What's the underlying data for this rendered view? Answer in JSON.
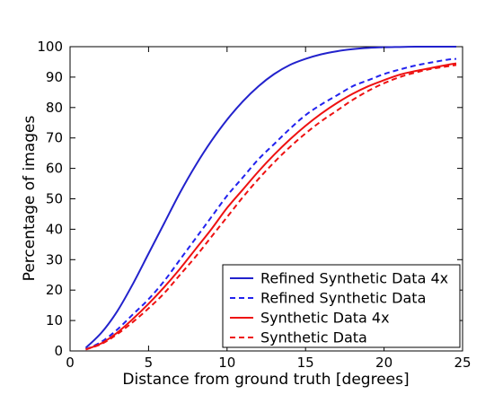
{
  "chart_data": {
    "type": "line",
    "title": "",
    "xlabel": "Distance from ground truth [degrees]",
    "ylabel": "Percentage of images",
    "xlim": [
      0,
      25
    ],
    "ylim": [
      0,
      100
    ],
    "x_ticks": [
      0,
      5,
      10,
      15,
      20,
      25
    ],
    "y_ticks": [
      0,
      10,
      20,
      30,
      40,
      50,
      60,
      70,
      80,
      90,
      100
    ],
    "grid": false,
    "legend_position": "lower-right",
    "x": [
      1,
      2,
      3,
      4,
      5,
      6,
      7,
      8,
      9,
      10,
      11,
      12,
      13,
      14,
      15,
      16,
      17,
      18,
      19,
      20,
      21,
      22,
      23,
      24,
      24.6
    ],
    "series": [
      {
        "name": "Refined Synthetic Data 4x",
        "color": "#2222cc",
        "dash": "solid",
        "values": [
          1,
          6,
          13,
          22,
          32,
          42,
          52,
          61,
          69,
          76,
          82,
          87,
          91,
          94,
          96,
          97.5,
          98.5,
          99.2,
          99.6,
          99.8,
          99.9,
          100,
          100,
          100,
          100
        ]
      },
      {
        "name": "Refined Synthetic Data",
        "color": "#2222ee",
        "dash": "dashed",
        "values": [
          0.5,
          3,
          7,
          12,
          17,
          23,
          30,
          37,
          44,
          51,
          57,
          63,
          68,
          73,
          77.5,
          81,
          84,
          87,
          89,
          91,
          92.5,
          93.8,
          94.8,
          95.7,
          96
        ]
      },
      {
        "name": "Synthetic Data 4x",
        "color": "#ee1111",
        "dash": "solid",
        "values": [
          0.5,
          2.5,
          6,
          10.5,
          15.5,
          21,
          27,
          33.5,
          40,
          47,
          53,
          59,
          64.5,
          69.5,
          74,
          78,
          81.5,
          84.5,
          87,
          89,
          90.8,
          92,
          93,
          94,
          94.5
        ]
      },
      {
        "name": "Synthetic Data",
        "color": "#ee1111",
        "dash": "dashed",
        "values": [
          0.5,
          2.3,
          5.5,
          9.5,
          14,
          19,
          25,
          31,
          37.5,
          44,
          50.5,
          56.5,
          62,
          67,
          71.5,
          75.5,
          79,
          82.5,
          85.5,
          88,
          90,
          91.5,
          92.7,
          93.5,
          94
        ]
      }
    ]
  }
}
